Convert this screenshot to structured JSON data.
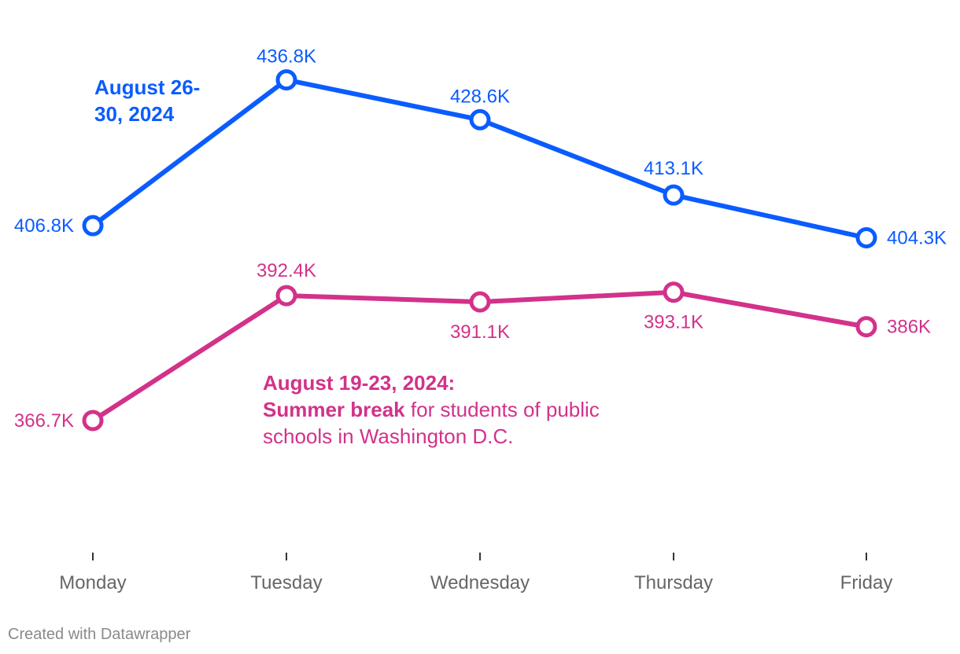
{
  "colors": {
    "series_1": "#0a5cff",
    "series_2": "#d2328a",
    "axis_text": "#666666",
    "credit": "#8a8a8a"
  },
  "annotations": {
    "aug26": {
      "text": "August 26-30, 2024"
    },
    "aug19": {
      "title": "August 19-23, 2024:",
      "bold": "Summer break",
      "rest": " for students of public schools in Washington D.C."
    }
  },
  "credit": "Created with Datawrapper",
  "chart_data": {
    "type": "line",
    "title": "",
    "xlabel": "",
    "ylabel": "",
    "categories": [
      "Monday",
      "Tuesday",
      "Wednesday",
      "Thursday",
      "Friday"
    ],
    "ylim": [
      340000,
      450000
    ],
    "grid": false,
    "series": [
      {
        "name": "August 26-30, 2024",
        "values": [
          406800,
          436800,
          428600,
          413100,
          404300
        ],
        "labels": [
          "406.8K",
          "436.8K",
          "428.6K",
          "413.1K",
          "404.3K"
        ]
      },
      {
        "name": "August 19-23, 2024",
        "values": [
          366700,
          392400,
          391100,
          393100,
          386000
        ],
        "labels": [
          "366.7K",
          "392.4K",
          "391.1K",
          "393.1K",
          "386K"
        ]
      }
    ]
  }
}
